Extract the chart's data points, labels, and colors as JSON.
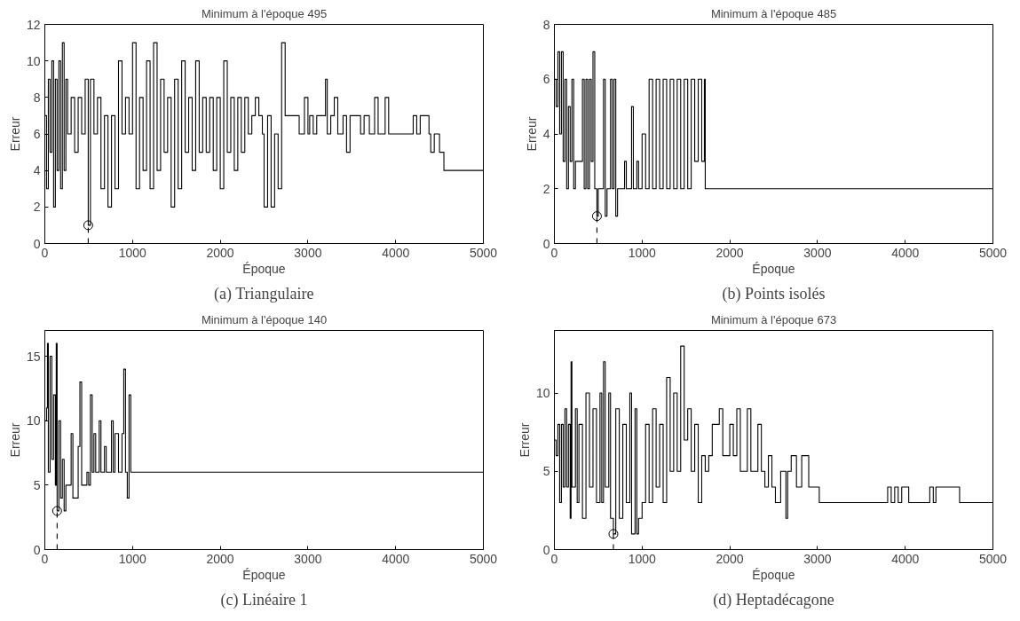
{
  "chart_data": [
    {
      "type": "step",
      "title": "Minimum à l'époque 495",
      "xlabel": "Époque",
      "ylabel": "Erreur",
      "annotations": [
        "(a) Triangulaire"
      ],
      "xlim": [
        0,
        5000
      ],
      "ylim": [
        0,
        12
      ],
      "xticks": [
        0,
        1000,
        2000,
        3000,
        4000,
        5000
      ],
      "yticks": [
        0,
        2,
        4,
        6,
        8,
        10,
        12
      ],
      "grid": false,
      "series": [
        {
          "color": "#000000",
          "x": [
            0,
            20,
            40,
            60,
            80,
            100,
            120,
            140,
            160,
            180,
            200,
            220,
            240,
            260,
            300,
            340,
            380,
            420,
            460,
            495,
            520,
            560,
            600,
            640,
            680,
            720,
            760,
            800,
            840,
            880,
            920,
            960,
            1000,
            1040,
            1080,
            1120,
            1160,
            1200,
            1240,
            1280,
            1320,
            1360,
            1400,
            1440,
            1480,
            1520,
            1560,
            1600,
            1640,
            1680,
            1720,
            1760,
            1800,
            1840,
            1880,
            1920,
            1960,
            2000,
            2040,
            2080,
            2120,
            2160,
            2200,
            2240,
            2280,
            2320,
            2360,
            2400,
            2440,
            2480,
            2500,
            2540,
            2580,
            2620,
            2660,
            2700,
            2740,
            2900,
            2960,
            3000,
            3020,
            3060,
            3100,
            3200,
            3220,
            3260,
            3300,
            3340,
            3400,
            3440,
            3480,
            3500,
            3600,
            3640,
            3700,
            3760,
            3800,
            3880,
            3920,
            3960,
            4200,
            4240,
            4280,
            4380,
            4400,
            4440,
            4500,
            4550,
            4560,
            5000
          ],
          "values": [
            7,
            3,
            9,
            5,
            10,
            2,
            9,
            4,
            10,
            3,
            11,
            4,
            9,
            6,
            8,
            5,
            8,
            6,
            9,
            1,
            9,
            6,
            8,
            3,
            7,
            2,
            7,
            3,
            10,
            6,
            8,
            6,
            11,
            3,
            8,
            4,
            10,
            3,
            11,
            4,
            9,
            5,
            8,
            2,
            9,
            3,
            10,
            5,
            8,
            4,
            10,
            5,
            8,
            5,
            8,
            4,
            8,
            3,
            10,
            5,
            8,
            4,
            8,
            5,
            8,
            6,
            7,
            8,
            7,
            6,
            2,
            7,
            2,
            6,
            3,
            11,
            7,
            6,
            8,
            6,
            7,
            6,
            7,
            9,
            6,
            7,
            8,
            6,
            7,
            5,
            7,
            7,
            6,
            7,
            6,
            8,
            6,
            8,
            6,
            6,
            7,
            6,
            7,
            6,
            5,
            6,
            5,
            4,
            4,
            4
          ]
        },
        {
          "type": "line",
          "color": "#000000",
          "line_style": "dashed",
          "x": [
            495,
            495
          ],
          "values": [
            0,
            1
          ]
        },
        {
          "type": "scatter",
          "color": "#000000",
          "marker": "circle",
          "x": [
            495
          ],
          "values": [
            1
          ]
        }
      ]
    },
    {
      "type": "step",
      "title": "Minimum à l'époque 485",
      "xlabel": "Époque",
      "ylabel": "Erreur",
      "annotations": [
        "(b) Points isolés"
      ],
      "xlim": [
        0,
        5000
      ],
      "ylim": [
        0,
        8
      ],
      "xticks": [
        0,
        1000,
        2000,
        3000,
        4000,
        5000
      ],
      "yticks": [
        0,
        2,
        4,
        6,
        8
      ],
      "grid": false,
      "series": [
        {
          "color": "#000000",
          "x": [
            0,
            20,
            40,
            60,
            80,
            100,
            120,
            140,
            160,
            180,
            200,
            220,
            240,
            260,
            300,
            320,
            340,
            360,
            380,
            400,
            420,
            440,
            460,
            485,
            500,
            540,
            560,
            580,
            600,
            640,
            660,
            680,
            700,
            720,
            800,
            820,
            880,
            900,
            940,
            960,
            1000,
            1040,
            1080,
            1120,
            1160,
            1200,
            1240,
            1280,
            1320,
            1360,
            1400,
            1440,
            1480,
            1520,
            1560,
            1600,
            1640,
            1680,
            1710,
            1720,
            5000
          ],
          "values": [
            6,
            5,
            7,
            4,
            7,
            3,
            6,
            2,
            5,
            3,
            6,
            2,
            3,
            3,
            3,
            6,
            2,
            6,
            2,
            6,
            3,
            7,
            2,
            1,
            2,
            2,
            6,
            1,
            2,
            6,
            2,
            6,
            1,
            2,
            3,
            2,
            5,
            2,
            3,
            2,
            4,
            2,
            6,
            2,
            6,
            2,
            6,
            2,
            6,
            2,
            6,
            2,
            6,
            2,
            6,
            3,
            6,
            3,
            6,
            2,
            2
          ]
        },
        {
          "type": "line",
          "color": "#000000",
          "line_style": "dashed",
          "x": [
            485,
            485
          ],
          "values": [
            0,
            1
          ]
        },
        {
          "type": "scatter",
          "color": "#000000",
          "marker": "circle",
          "x": [
            485
          ],
          "values": [
            1
          ]
        }
      ]
    },
    {
      "type": "step",
      "title": "Minimum à l'époque 140",
      "xlabel": "Époque",
      "ylabel": "Erreur",
      "annotations": [
        "(c) Linéaire 1"
      ],
      "xlim": [
        0,
        5000
      ],
      "ylim": [
        0,
        17
      ],
      "xticks": [
        0,
        1000,
        2000,
        3000,
        4000,
        5000
      ],
      "yticks": [
        0,
        5,
        10,
        15
      ],
      "grid": false,
      "series": [
        {
          "color": "#000000",
          "x": [
            0,
            20,
            30,
            40,
            60,
            80,
            100,
            120,
            130,
            140,
            160,
            180,
            200,
            220,
            240,
            280,
            300,
            320,
            360,
            380,
            400,
            420,
            480,
            500,
            520,
            540,
            560,
            580,
            620,
            640,
            680,
            700,
            760,
            780,
            800,
            840,
            880,
            900,
            920,
            940,
            960,
            980,
            5000
          ],
          "values": [
            10,
            11,
            16,
            6,
            15,
            7,
            12,
            5,
            16,
            3,
            10,
            4,
            7,
            3,
            5,
            5,
            9,
            4,
            4,
            8,
            13,
            5,
            6,
            5,
            12,
            6,
            9,
            6,
            10,
            6,
            8,
            6,
            10,
            6,
            9,
            6,
            9,
            14,
            6,
            4,
            12,
            6,
            6
          ]
        },
        {
          "type": "line",
          "color": "#000000",
          "line_style": "dashed",
          "x": [
            140,
            140
          ],
          "values": [
            0,
            3
          ]
        },
        {
          "type": "scatter",
          "color": "#000000",
          "marker": "circle",
          "x": [
            140
          ],
          "values": [
            3
          ]
        }
      ]
    },
    {
      "type": "step",
      "title": "Minimum à l'époque 673",
      "xlabel": "Époque",
      "ylabel": "Erreur",
      "annotations": [
        "(d) Heptadécagone"
      ],
      "xlim": [
        0,
        5000
      ],
      "ylim": [
        0,
        14
      ],
      "xticks": [
        0,
        1000,
        2000,
        3000,
        4000,
        5000
      ],
      "yticks": [
        0,
        5,
        10
      ],
      "grid": false,
      "series": [
        {
          "color": "#000000",
          "x": [
            0,
            20,
            40,
            60,
            80,
            100,
            120,
            140,
            160,
            180,
            190,
            200,
            240,
            260,
            280,
            320,
            360,
            400,
            440,
            480,
            520,
            540,
            560,
            580,
            620,
            640,
            673,
            700,
            740,
            780,
            820,
            860,
            880,
            920,
            940,
            960,
            1000,
            1040,
            1080,
            1120,
            1160,
            1200,
            1240,
            1280,
            1320,
            1360,
            1400,
            1440,
            1480,
            1520,
            1560,
            1600,
            1640,
            1680,
            1720,
            1760,
            1800,
            1880,
            1920,
            2000,
            2040,
            2080,
            2120,
            2200,
            2240,
            2320,
            2360,
            2400,
            2440,
            2480,
            2520,
            2580,
            2640,
            2660,
            2700,
            2760,
            2820,
            2900,
            3020,
            3800,
            3840,
            3880,
            3920,
            3960,
            4040,
            4280,
            4320,
            4350,
            4620,
            5000
          ],
          "values": [
            7,
            6,
            8,
            3,
            8,
            4,
            9,
            4,
            8,
            2,
            12,
            4,
            9,
            3,
            8,
            2,
            10,
            4,
            9,
            3,
            10,
            3,
            12,
            4,
            10,
            2,
            1,
            9,
            2,
            8,
            3,
            10,
            1,
            9,
            1,
            2,
            3,
            8,
            3,
            9,
            4,
            8,
            3,
            11,
            5,
            10,
            5,
            13,
            7,
            9,
            5,
            8,
            3,
            6,
            5,
            6,
            8,
            9,
            6,
            8,
            6,
            9,
            5,
            9,
            5,
            8,
            5,
            4,
            6,
            4,
            3,
            5,
            2,
            5,
            6,
            4,
            6,
            4,
            3,
            4,
            3,
            4,
            3,
            4,
            3,
            4,
            3,
            4,
            3,
            3
          ]
        },
        {
          "type": "line",
          "color": "#000000",
          "line_style": "dashed",
          "x": [
            673,
            673
          ],
          "values": [
            0,
            1
          ]
        },
        {
          "type": "scatter",
          "color": "#000000",
          "marker": "circle",
          "x": [
            673
          ],
          "values": [
            1
          ]
        }
      ]
    }
  ]
}
